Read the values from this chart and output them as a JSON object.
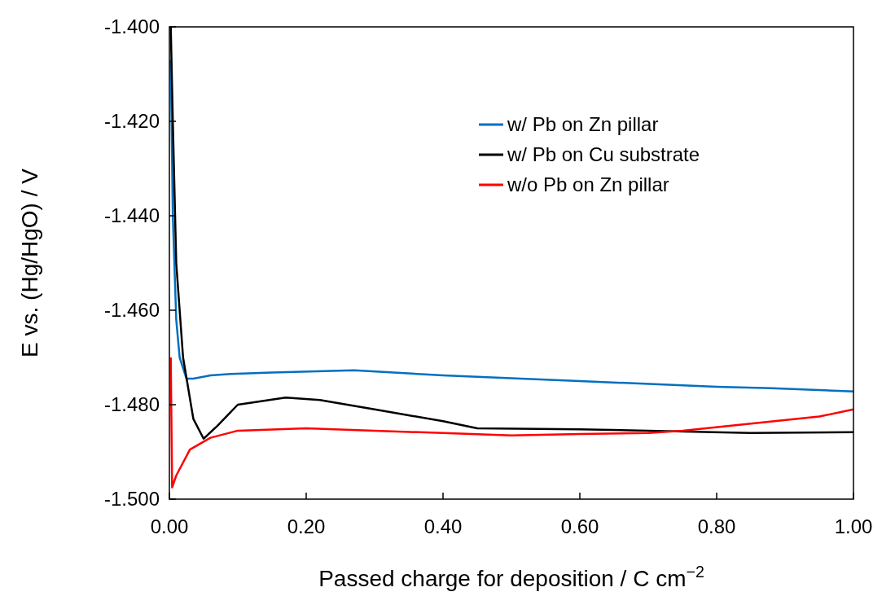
{
  "chart_data": {
    "type": "line",
    "xlabel": "Passed charge for deposition / C cm$^{−2}$",
    "ylabel": "E vs. (Hg/HgO) / V",
    "xlim": [
      0,
      1
    ],
    "xticks": [
      {
        "value": 0,
        "label": "0.00"
      },
      {
        "value": 0.2,
        "label": "0.20"
      },
      {
        "value": 0.4,
        "label": "0.40"
      },
      {
        "value": 0.6,
        "label": "0.60"
      },
      {
        "value": 0.8,
        "label": "0.80"
      },
      {
        "value": 1,
        "label": "1.00"
      }
    ],
    "ylim": [
      -1.5,
      -1.4
    ],
    "yticks": [
      {
        "value": -1.5,
        "label": "-1.500"
      },
      {
        "value": -1.48,
        "label": "-1.480"
      },
      {
        "value": -1.46,
        "label": "-1.460"
      },
      {
        "value": -1.44,
        "label": "-1.440"
      },
      {
        "value": -1.42,
        "label": "-1.420"
      },
      {
        "value": -1.4,
        "label": "-1.400"
      }
    ],
    "grid": false,
    "legend": "top right",
    "line_style": "solid",
    "marker": "none",
    "series": [
      {
        "name": "w/ Pb on Zn pillar",
        "color": "#0070c0",
        "x": [
          0.002,
          0.005,
          0.01,
          0.015,
          0.025,
          0.035,
          0.06,
          0.09,
          0.15,
          0.27,
          0.4,
          0.6,
          0.8,
          0.88,
          1.0
        ],
        "values": [
          -1.407,
          -1.44,
          -1.462,
          -1.47,
          -1.4745,
          -1.4745,
          -1.4738,
          -1.4735,
          -1.4732,
          -1.4727,
          -1.4738,
          -1.475,
          -1.4762,
          -1.4765,
          -1.4772
        ]
      },
      {
        "name": "w/ Pb on Cu substrate",
        "color": "#000000",
        "x": [
          0.002,
          0.005,
          0.01,
          0.02,
          0.035,
          0.05,
          0.07,
          0.1,
          0.17,
          0.22,
          0.3,
          0.4,
          0.45,
          0.6,
          0.7,
          0.85,
          1.0
        ],
        "values": [
          -1.4,
          -1.42,
          -1.45,
          -1.47,
          -1.483,
          -1.4872,
          -1.4845,
          -1.48,
          -1.4785,
          -1.479,
          -1.481,
          -1.4835,
          -1.485,
          -1.4852,
          -1.4855,
          -1.486,
          -1.4858
        ]
      },
      {
        "name": "w/o Pb on Zn pillar",
        "color": "#ff0000",
        "x": [
          0.002,
          0.004,
          0.01,
          0.03,
          0.06,
          0.1,
          0.2,
          0.3,
          0.4,
          0.5,
          0.6,
          0.7,
          0.75,
          0.85,
          0.95,
          1.0
        ],
        "values": [
          -1.47,
          -1.4975,
          -1.495,
          -1.4895,
          -1.487,
          -1.4855,
          -1.485,
          -1.4855,
          -1.486,
          -1.4865,
          -1.4862,
          -1.486,
          -1.4855,
          -1.484,
          -1.4825,
          -1.481
        ]
      }
    ]
  }
}
